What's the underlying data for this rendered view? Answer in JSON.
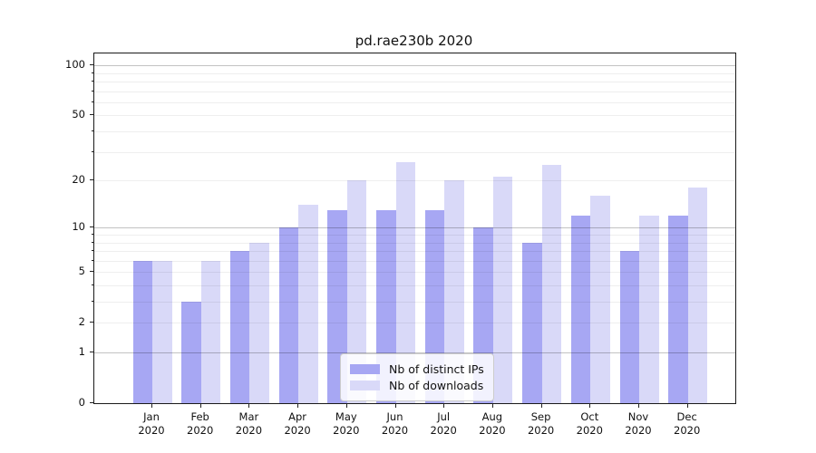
{
  "title": "pd.rae230b 2020",
  "chart_data": {
    "type": "bar",
    "title": "pd.rae230b 2020",
    "categories": [
      "Jan 2020",
      "Feb 2020",
      "Mar 2020",
      "Apr 2020",
      "May 2020",
      "Jun 2020",
      "Jul 2020",
      "Aug 2020",
      "Sep 2020",
      "Oct 2020",
      "Nov 2020",
      "Dec 2020"
    ],
    "months": [
      "Jan",
      "Feb",
      "Mar",
      "Apr",
      "May",
      "Jun",
      "Jul",
      "Aug",
      "Sep",
      "Oct",
      "Nov",
      "Dec"
    ],
    "year": "2020",
    "series": [
      {
        "name": "Nb of distinct IPs",
        "color": "#a7a7f3",
        "values": [
          6,
          3,
          7,
          10,
          13,
          13,
          13,
          10,
          8,
          12,
          7,
          12
        ]
      },
      {
        "name": "Nb of downloads",
        "color": "#d9d9f8",
        "values": [
          6,
          6,
          8,
          14,
          20,
          26,
          20,
          21,
          25,
          16,
          12,
          18
        ]
      }
    ],
    "xlabel": "",
    "ylabel": "",
    "yscale": "log10(1+y)",
    "yticks": [
      0,
      1,
      2,
      5,
      10,
      20,
      50,
      100
    ],
    "yticks_minor": [
      3,
      4,
      6,
      7,
      8,
      9,
      30,
      40,
      60,
      70,
      80,
      90
    ],
    "ygrid_major_values": [
      1,
      10,
      100
    ],
    "ylim": [
      0,
      118
    ],
    "grid": true,
    "legend_position": "lower center",
    "background": "#ffffff"
  }
}
